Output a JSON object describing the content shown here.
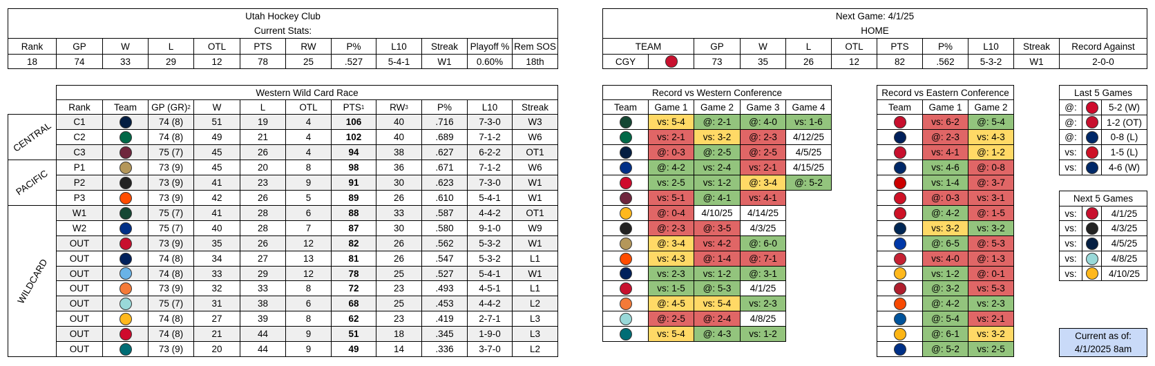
{
  "utah_stats": {
    "title": "Utah Hockey Club",
    "subtitle": "Current Stats:",
    "headers": [
      "Rank",
      "GP",
      "W",
      "L",
      "OTL",
      "PTS",
      "RW",
      "P%",
      "L10",
      "Streak",
      "Playoff %",
      "Rem SOS"
    ],
    "values": [
      "18",
      "74",
      "33",
      "29",
      "12",
      "78",
      "25",
      ".527",
      "5-4-1",
      "W1",
      "0.60%",
      "18th"
    ]
  },
  "next_game": {
    "title": "Next Game: 4/1/25",
    "subtitle": "HOME",
    "headers": [
      "TEAM",
      "GP",
      "W",
      "L",
      "OTL",
      "PTS",
      "P%",
      "L10",
      "Streak",
      "Record Against"
    ],
    "values": [
      "CGY",
      "73",
      "35",
      "26",
      "12",
      "82",
      ".562",
      "5-3-2",
      "W1",
      "2-0-0"
    ]
  },
  "wild_card": {
    "title": "Western Wild Card Race",
    "headers": [
      "Rank",
      "Team",
      "GP (GR)",
      "W",
      "L",
      "OTL",
      "PTS",
      "RW",
      "P%",
      "L10",
      "Streak"
    ],
    "header_notes": [
      null,
      null,
      "2",
      null,
      null,
      null,
      "1",
      "3",
      null,
      null,
      null
    ],
    "groups": [
      {
        "label": "CENTRAL",
        "rows": [
          [
            "C1",
            "74 (8)",
            "51",
            "19",
            "4",
            "106",
            "40",
            ".716",
            "7-3-0",
            "W3"
          ],
          [
            "C2",
            "74 (8)",
            "49",
            "21",
            "4",
            "102",
            "40",
            ".689",
            "7-1-2",
            "W6"
          ],
          [
            "C3",
            "75 (7)",
            "45",
            "26",
            "4",
            "94",
            "38",
            ".627",
            "6-2-2",
            "OT1"
          ]
        ]
      },
      {
        "label": "PACIFIC",
        "rows": [
          [
            "P1",
            "73 (9)",
            "45",
            "20",
            "8",
            "98",
            "36",
            ".671",
            "7-1-2",
            "W6"
          ],
          [
            "P2",
            "73 (9)",
            "41",
            "23",
            "9",
            "91",
            "30",
            ".623",
            "7-3-0",
            "W1"
          ],
          [
            "P3",
            "73 (9)",
            "42",
            "26",
            "5",
            "89",
            "26",
            ".610",
            "5-4-1",
            "W1"
          ]
        ]
      },
      {
        "label": "WILDCARD",
        "rows": [
          [
            "W1",
            "75 (7)",
            "41",
            "28",
            "6",
            "88",
            "33",
            ".587",
            "4-4-2",
            "OT1"
          ],
          [
            "W2",
            "75 (7)",
            "40",
            "28",
            "7",
            "87",
            "30",
            ".580",
            "9-1-0",
            "W9"
          ],
          [
            "OUT",
            "73 (9)",
            "35",
            "26",
            "12",
            "82",
            "26",
            ".562",
            "5-3-2",
            "W1"
          ],
          [
            "OUT",
            "74 (8)",
            "34",
            "27",
            "13",
            "81",
            "26",
            ".547",
            "5-3-2",
            "L1"
          ],
          [
            "OUT",
            "74 (8)",
            "33",
            "29",
            "12",
            "78",
            "25",
            ".527",
            "5-4-1",
            "W1"
          ],
          [
            "OUT",
            "73 (9)",
            "32",
            "33",
            "8",
            "72",
            "23",
            ".493",
            "4-5-1",
            "L1"
          ],
          [
            "OUT",
            "75 (7)",
            "31",
            "38",
            "6",
            "68",
            "25",
            ".453",
            "4-4-2",
            "L2"
          ],
          [
            "OUT",
            "74 (8)",
            "27",
            "39",
            "8",
            "62",
            "23",
            ".419",
            "2-7-1",
            "L3"
          ],
          [
            "OUT",
            "74 (8)",
            "21",
            "44",
            "9",
            "51",
            "18",
            ".345",
            "1-9-0",
            "L3"
          ],
          [
            "OUT",
            "73 (9)",
            "20",
            "44",
            "9",
            "49",
            "14",
            ".336",
            "3-7-0",
            "L2"
          ]
        ]
      }
    ]
  },
  "west_record": {
    "title": "Record vs Western Conference",
    "headers": [
      "Team",
      "Game 1",
      "Game 2",
      "Game 3",
      "Game 4"
    ],
    "rows": [
      [
        {
          "text": "vs: 5-4",
          "fill": "#ffd966"
        },
        {
          "text": "@: 2-1",
          "fill": "#93c47d"
        },
        {
          "text": "@: 4-0",
          "fill": "#93c47d"
        },
        {
          "text": "vs: 1-6",
          "fill": "#93c47d"
        }
      ],
      [
        {
          "text": "vs: 2-1",
          "fill": "#e06666"
        },
        {
          "text": "vs: 3-2",
          "fill": "#ffd966"
        },
        {
          "text": "@: 2-3",
          "fill": "#e06666"
        },
        {
          "text": "4/12/25"
        }
      ],
      [
        {
          "text": "@: 0-3",
          "fill": "#e06666"
        },
        {
          "text": "@: 2-5",
          "fill": "#93c47d"
        },
        {
          "text": "@: 2-5",
          "fill": "#e06666"
        },
        {
          "text": "4/5/25"
        }
      ],
      [
        {
          "text": "@: 4-2",
          "fill": "#93c47d"
        },
        {
          "text": "vs: 2-4",
          "fill": "#93c47d"
        },
        {
          "text": "vs: 2-1",
          "fill": "#e06666"
        },
        {
          "text": "4/15/25"
        }
      ],
      [
        {
          "text": "vs: 2-5",
          "fill": "#93c47d"
        },
        {
          "text": "vs: 1-2",
          "fill": "#93c47d"
        },
        {
          "text": "@: 3-4",
          "fill": "#ffd966"
        },
        {
          "text": "@: 5-2",
          "fill": "#93c47d"
        }
      ],
      [
        {
          "text": "vs: 5-1",
          "fill": "#e06666"
        },
        {
          "text": "@: 4-1",
          "fill": "#93c47d"
        },
        {
          "text": "vs: 4-1",
          "fill": "#e06666"
        }
      ],
      [
        {
          "text": "@: 0-4",
          "fill": "#e06666"
        },
        {
          "text": "4/10/25"
        },
        {
          "text": "4/14/25"
        }
      ],
      [
        {
          "text": "@: 2-3",
          "fill": "#e06666"
        },
        {
          "text": "@: 3-5",
          "fill": "#e06666"
        },
        {
          "text": "4/3/25"
        }
      ],
      [
        {
          "text": "@: 3-4",
          "fill": "#ffd966"
        },
        {
          "text": "vs: 4-2",
          "fill": "#e06666"
        },
        {
          "text": "@: 6-0",
          "fill": "#93c47d"
        }
      ],
      [
        {
          "text": "vs: 4-3",
          "fill": "#ffd966"
        },
        {
          "text": "@: 1-4",
          "fill": "#e06666"
        },
        {
          "text": "@: 7-1",
          "fill": "#e06666"
        }
      ],
      [
        {
          "text": "vs: 2-3",
          "fill": "#93c47d"
        },
        {
          "text": "vs: 1-2",
          "fill": "#93c47d"
        },
        {
          "text": "@: 3-1",
          "fill": "#93c47d"
        }
      ],
      [
        {
          "text": "vs: 1-5",
          "fill": "#93c47d"
        },
        {
          "text": "@: 5-3",
          "fill": "#93c47d"
        },
        {
          "text": "4/1/25"
        }
      ],
      [
        {
          "text": "@: 4-5",
          "fill": "#ffd966"
        },
        {
          "text": "vs: 5-4",
          "fill": "#ffd966"
        },
        {
          "text": "vs: 2-3",
          "fill": "#93c47d"
        }
      ],
      [
        {
          "text": "@: 2-5",
          "fill": "#e06666"
        },
        {
          "text": "@: 2-4",
          "fill": "#e06666"
        },
        {
          "text": "4/8/25"
        }
      ],
      [
        {
          "text": "vs: 5-4",
          "fill": "#ffd966"
        },
        {
          "text": "@: 4-3",
          "fill": "#93c47d"
        },
        {
          "text": "vs: 1-2",
          "fill": "#93c47d"
        }
      ]
    ]
  },
  "east_record": {
    "title": "Record vs Eastern Conference",
    "headers": [
      "Team",
      "Game 1",
      "Game 2"
    ],
    "rows": [
      [
        {
          "text": "vs: 6-2",
          "fill": "#e06666"
        },
        {
          "text": "@: 5-4",
          "fill": "#93c47d"
        }
      ],
      [
        {
          "text": "@: 2-3",
          "fill": "#e06666"
        },
        {
          "text": "vs: 4-3",
          "fill": "#ffd966"
        }
      ],
      [
        {
          "text": "vs: 4-1",
          "fill": "#e06666"
        },
        {
          "text": "@: 1-2",
          "fill": "#ffd966"
        }
      ],
      [
        {
          "text": "vs: 4-6",
          "fill": "#93c47d"
        },
        {
          "text": "@: 0-8",
          "fill": "#e06666"
        }
      ],
      [
        {
          "text": "vs: 1-4",
          "fill": "#93c47d"
        },
        {
          "text": "@: 3-7",
          "fill": "#e06666"
        }
      ],
      [
        {
          "text": "@: 0-3",
          "fill": "#e06666"
        },
        {
          "text": "vs: 3-1",
          "fill": "#e06666"
        }
      ],
      [
        {
          "text": "@: 4-2",
          "fill": "#93c47d"
        },
        {
          "text": "@: 1-5",
          "fill": "#e06666"
        }
      ],
      [
        {
          "text": "vs: 3-2",
          "fill": "#ffd966"
        },
        {
          "text": "vs: 3-2",
          "fill": "#93c47d"
        }
      ],
      [
        {
          "text": "@: 6-5",
          "fill": "#93c47d"
        },
        {
          "text": "@: 5-3",
          "fill": "#e06666"
        }
      ],
      [
        {
          "text": "vs: 4-0",
          "fill": "#e06666"
        },
        {
          "text": "@: 1-3",
          "fill": "#e06666"
        }
      ],
      [
        {
          "text": "vs: 1-2",
          "fill": "#93c47d"
        },
        {
          "text": "@: 0-1",
          "fill": "#e06666"
        }
      ],
      [
        {
          "text": "@: 3-2",
          "fill": "#93c47d"
        },
        {
          "text": "vs: 5-3",
          "fill": "#e06666"
        }
      ],
      [
        {
          "text": "@: 4-2",
          "fill": "#93c47d"
        },
        {
          "text": "vs: 2-3",
          "fill": "#93c47d"
        }
      ],
      [
        {
          "text": "@: 5-4",
          "fill": "#93c47d"
        },
        {
          "text": "vs: 2-1",
          "fill": "#e06666"
        }
      ],
      [
        {
          "text": "@: 6-1",
          "fill": "#93c47d"
        },
        {
          "text": "vs: 3-2",
          "fill": "#ffd966"
        }
      ],
      [
        {
          "text": "@: 5-2",
          "fill": "#93c47d"
        },
        {
          "text": "vs: 2-5",
          "fill": "#93c47d"
        }
      ]
    ]
  },
  "last_5": {
    "title": "Last 5 Games",
    "rows": [
      [
        "@:",
        "5-2 (W)"
      ],
      [
        "@:",
        "1-2 (OT)"
      ],
      [
        "@:",
        "0-8 (L)"
      ],
      [
        "vs:",
        "1-5 (L)"
      ],
      [
        "vs:",
        "4-6 (W)"
      ]
    ]
  },
  "next_5": {
    "title": "Next 5 Games",
    "rows": [
      [
        "vs:",
        "4/1/25"
      ],
      [
        "vs:",
        "4/3/25"
      ],
      [
        "vs:",
        "4/5/25"
      ],
      [
        "vs:",
        "4/8/25"
      ],
      [
        "vs:",
        "4/10/25"
      ]
    ]
  },
  "updated": {
    "label": "Current as of:",
    "time": "4/1/2025 8am"
  }
}
